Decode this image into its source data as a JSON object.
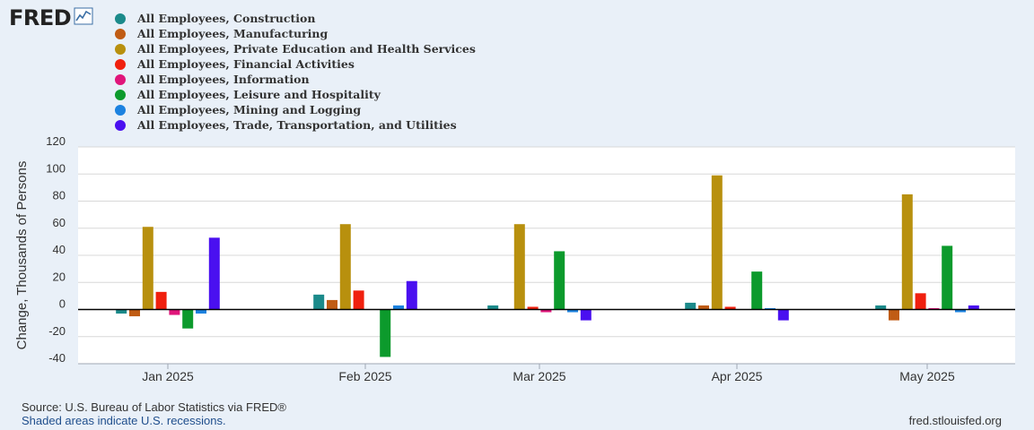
{
  "logo": {
    "text": "FRED"
  },
  "chart_data": {
    "type": "bar",
    "ylabel": "Change, Thousands of Persons",
    "xlabel": "",
    "ylim": [
      -40,
      120
    ],
    "yticks": [
      120,
      100,
      80,
      60,
      40,
      20,
      0,
      -20,
      -40
    ],
    "grid": true,
    "legend_position": "top-left",
    "categories": [
      "Jan 2025",
      "Feb 2025",
      "Mar 2025",
      "Apr 2025",
      "May 2025"
    ],
    "series": [
      {
        "name": "All Employees, Construction",
        "color": "#1b8a8a",
        "values": [
          -3,
          11,
          3,
          5,
          3
        ]
      },
      {
        "name": "All Employees, Manufacturing",
        "color": "#c05c14",
        "values": [
          -5,
          7,
          0,
          3,
          -8
        ]
      },
      {
        "name": "All Employees, Private Education and Health Services",
        "color": "#b8900e",
        "values": [
          61,
          63,
          63,
          99,
          85
        ]
      },
      {
        "name": "All Employees, Financial Activities",
        "color": "#f0200e",
        "values": [
          13,
          14,
          2,
          2,
          12
        ]
      },
      {
        "name": "All Employees, Information",
        "color": "#e0157a",
        "values": [
          -4,
          0,
          -2,
          0,
          1
        ]
      },
      {
        "name": "All Employees, Leisure and Hospitality",
        "color": "#0c9a2c",
        "values": [
          -14,
          -35,
          43,
          28,
          47
        ]
      },
      {
        "name": "All Employees, Mining and Logging",
        "color": "#1c82e0",
        "values": [
          -3,
          3,
          -2,
          1,
          -2
        ]
      },
      {
        "name": "All Employees, Trade, Transportation, and Utilities",
        "color": "#4a10f0",
        "values": [
          53,
          21,
          -8,
          -8,
          3
        ]
      }
    ]
  },
  "footer": {
    "source": "Source: U.S. Bureau of Labor Statistics via FRED®",
    "shaded": "Shaded areas indicate U.S. recessions.",
    "url": "fred.stlouisfed.org"
  }
}
